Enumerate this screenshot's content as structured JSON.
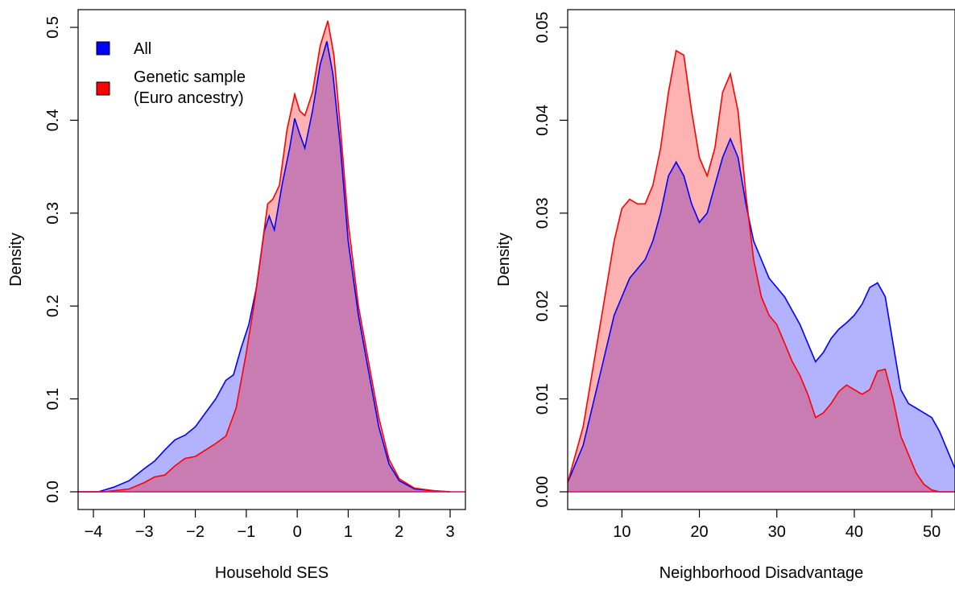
{
  "chart_data": [
    {
      "type": "area",
      "title": "",
      "xlabel": "Household SES",
      "ylabel": "Density",
      "xlim": [
        -4.3,
        3.3
      ],
      "ylim": [
        0,
        0.5
      ],
      "x_ticks": [
        -4,
        -3,
        -2,
        -1,
        0,
        1,
        2,
        3
      ],
      "x_tick_labels": [
        "−4",
        "−3",
        "−2",
        "−1",
        "0",
        "1",
        "2",
        "3"
      ],
      "y_ticks": [
        0,
        0.1,
        0.2,
        0.3,
        0.4,
        0.5
      ],
      "y_tick_labels": [
        "0.0",
        "0.1",
        "0.2",
        "0.3",
        "0.4",
        "0.5"
      ],
      "grid": false,
      "legend": {
        "placement": "top-left",
        "entries": [
          "All",
          "Genetic sample",
          "(Euro ancestry)"
        ]
      },
      "series": [
        {
          "name": "All",
          "color": "#0000ff",
          "fill": "rgba(0,0,255,0.3)",
          "x": [
            -4.3,
            -3.9,
            -3.6,
            -3.3,
            -3.0,
            -2.8,
            -2.6,
            -2.4,
            -2.2,
            -2.0,
            -1.8,
            -1.6,
            -1.4,
            -1.25,
            -1.1,
            -0.95,
            -0.8,
            -0.65,
            -0.55,
            -0.45,
            -0.3,
            -0.15,
            -0.05,
            0.05,
            0.15,
            0.3,
            0.45,
            0.58,
            0.7,
            0.85,
            1.0,
            1.2,
            1.4,
            1.6,
            1.8,
            2.0,
            2.3,
            2.7,
            3.0
          ],
          "y": [
            0.0,
            0.0,
            0.005,
            0.012,
            0.025,
            0.033,
            0.045,
            0.056,
            0.061,
            0.07,
            0.085,
            0.1,
            0.12,
            0.126,
            0.155,
            0.18,
            0.22,
            0.28,
            0.297,
            0.282,
            0.33,
            0.37,
            0.402,
            0.385,
            0.37,
            0.41,
            0.46,
            0.485,
            0.45,
            0.37,
            0.27,
            0.19,
            0.13,
            0.07,
            0.03,
            0.012,
            0.003,
            0.001,
            0.0
          ]
        },
        {
          "name": "Genetic sample (Euro ancestry)",
          "color": "#ff0000",
          "fill": "rgba(255,0,0,0.3)",
          "x": [
            -4.3,
            -3.8,
            -3.3,
            -3.0,
            -2.8,
            -2.6,
            -2.4,
            -2.2,
            -2.0,
            -1.8,
            -1.6,
            -1.4,
            -1.2,
            -1.0,
            -0.85,
            -0.7,
            -0.58,
            -0.48,
            -0.35,
            -0.2,
            -0.05,
            0.05,
            0.15,
            0.3,
            0.45,
            0.6,
            0.72,
            0.85,
            1.0,
            1.2,
            1.4,
            1.6,
            1.8,
            2.0,
            2.3,
            2.7,
            3.0
          ],
          "y": [
            0.0,
            0.0,
            0.003,
            0.01,
            0.016,
            0.018,
            0.028,
            0.036,
            0.038,
            0.045,
            0.052,
            0.06,
            0.09,
            0.15,
            0.2,
            0.26,
            0.31,
            0.315,
            0.33,
            0.39,
            0.428,
            0.41,
            0.405,
            0.43,
            0.48,
            0.507,
            0.47,
            0.39,
            0.29,
            0.2,
            0.14,
            0.08,
            0.035,
            0.014,
            0.004,
            0.001,
            0.0
          ]
        }
      ]
    },
    {
      "type": "area",
      "title": "",
      "xlabel": "Neighborhood Disadvantage",
      "ylabel": "Density",
      "xlim": [
        3,
        53
      ],
      "ylim": [
        0,
        0.05
      ],
      "x_ticks": [
        10,
        20,
        30,
        40,
        50
      ],
      "x_tick_labels": [
        "10",
        "20",
        "30",
        "40",
        "50"
      ],
      "y_ticks": [
        0,
        0.01,
        0.02,
        0.03,
        0.04,
        0.05
      ],
      "y_tick_labels": [
        "0.00",
        "0.01",
        "0.02",
        "0.03",
        "0.04",
        "0.05"
      ],
      "grid": false,
      "series": [
        {
          "name": "All",
          "color": "#0000ff",
          "fill": "rgba(0,0,255,0.3)",
          "x": [
            3,
            5,
            7,
            9,
            10,
            11,
            12,
            13,
            14,
            15,
            16,
            17,
            18,
            19,
            20,
            21,
            22,
            23,
            24,
            25,
            26,
            27,
            28,
            29,
            30,
            31,
            32,
            33,
            34,
            35,
            36,
            37,
            38,
            39,
            40,
            41,
            42,
            43,
            44,
            45,
            46,
            47,
            48,
            49,
            50,
            51,
            52,
            53
          ],
          "y": [
            0.001,
            0.005,
            0.012,
            0.019,
            0.021,
            0.023,
            0.024,
            0.025,
            0.027,
            0.03,
            0.034,
            0.0355,
            0.034,
            0.031,
            0.029,
            0.03,
            0.033,
            0.036,
            0.038,
            0.036,
            0.031,
            0.027,
            0.025,
            0.023,
            0.022,
            0.021,
            0.0195,
            0.018,
            0.016,
            0.014,
            0.015,
            0.0165,
            0.0175,
            0.0182,
            0.019,
            0.0202,
            0.022,
            0.0225,
            0.021,
            0.016,
            0.011,
            0.0095,
            0.009,
            0.0085,
            0.008,
            0.0065,
            0.0045,
            0.0025
          ]
        },
        {
          "name": "Genetic sample (Euro ancestry)",
          "color": "#ff0000",
          "fill": "rgba(255,0,0,0.3)",
          "x": [
            3,
            5,
            7,
            9,
            10,
            11,
            12,
            13,
            14,
            15,
            16,
            17,
            18,
            19,
            20,
            21,
            22,
            23,
            24,
            25,
            26,
            27,
            28,
            29,
            30,
            31,
            32,
            33,
            34,
            35,
            36,
            37,
            38,
            39,
            40,
            41,
            42,
            43,
            44,
            45,
            46,
            47,
            48,
            49,
            50,
            51,
            52,
            53
          ],
          "y": [
            0.001,
            0.007,
            0.017,
            0.027,
            0.0305,
            0.0315,
            0.031,
            0.031,
            0.033,
            0.037,
            0.043,
            0.0475,
            0.047,
            0.041,
            0.036,
            0.034,
            0.037,
            0.043,
            0.045,
            0.041,
            0.032,
            0.025,
            0.021,
            0.019,
            0.018,
            0.016,
            0.014,
            0.0125,
            0.0105,
            0.008,
            0.0085,
            0.0095,
            0.0108,
            0.0115,
            0.011,
            0.0105,
            0.011,
            0.013,
            0.0132,
            0.01,
            0.006,
            0.004,
            0.002,
            0.0008,
            0.0002,
            0.0,
            0.0,
            0.0
          ]
        }
      ]
    }
  ]
}
